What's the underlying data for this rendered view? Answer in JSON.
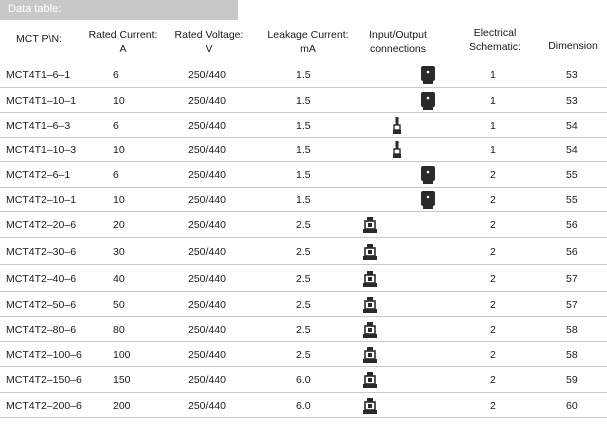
{
  "title": "Data table:",
  "headers": {
    "pn": "MCT P\\N:",
    "current_1": "Rated Current:",
    "current_2": "A",
    "voltage_1": "Rated Voltage:",
    "voltage_2": "V",
    "leakage_1": "Leakage  Current:",
    "leakage_2": "mA",
    "io_1": "Input/Output",
    "io_2": "connections",
    "schematic_1": "Electrical",
    "schematic_2": "Schematic:",
    "dimension": "Dimension"
  },
  "rows": [
    {
      "pn": "MCT4T1–6–1",
      "current": "6",
      "voltage": "250/440",
      "leakage": "1.5",
      "connector": "block-icon",
      "schematic": "1",
      "dimension": "53"
    },
    {
      "pn": "MCT4T1–10–1",
      "current": "10",
      "voltage": "250/440",
      "leakage": "1.5",
      "connector": "block-icon",
      "schematic": "1",
      "dimension": "53"
    },
    {
      "pn": "MCT4T1–6–3",
      "current": "6",
      "voltage": "250/440",
      "leakage": "1.5",
      "connector": "pin-icon",
      "schematic": "1",
      "dimension": "54"
    },
    {
      "pn": "MCT4T1–10–3",
      "current": "10",
      "voltage": "250/440",
      "leakage": "1.5",
      "connector": "pin-icon",
      "schematic": "1",
      "dimension": "54"
    },
    {
      "pn": "MCT4T2–6–1",
      "current": "6",
      "voltage": "250/440",
      "leakage": "1.5",
      "connector": "block-icon",
      "schematic": "2",
      "dimension": "55"
    },
    {
      "pn": "MCT4T2–10–1",
      "current": "10",
      "voltage": "250/440",
      "leakage": "1.5",
      "connector": "block-icon",
      "schematic": "2",
      "dimension": "55"
    },
    {
      "pn": "MCT4T2–20–6",
      "current": "20",
      "voltage": "250/440",
      "leakage": "2.5",
      "connector": "terminal-icon",
      "schematic": "2",
      "dimension": "56"
    },
    {
      "pn": "MCT4T2–30–6",
      "current": "30",
      "voltage": "250/440",
      "leakage": "2.5",
      "connector": "terminal-icon",
      "schematic": "2",
      "dimension": "56"
    },
    {
      "pn": "MCT4T2–40–6",
      "current": "40",
      "voltage": "250/440",
      "leakage": "2.5",
      "connector": "terminal-icon",
      "schematic": "2",
      "dimension": "57"
    },
    {
      "pn": "MCT4T2–50–6",
      "current": "50",
      "voltage": "250/440",
      "leakage": "2.5",
      "connector": "terminal-icon",
      "schematic": "2",
      "dimension": "57"
    },
    {
      "pn": "MCT4T2–80–6",
      "current": "80",
      "voltage": "250/440",
      "leakage": "2.5",
      "connector": "terminal-icon",
      "schematic": "2",
      "dimension": "58"
    },
    {
      "pn": "MCT4T2–100–6",
      "current": "100",
      "voltage": "250/440",
      "leakage": "2.5",
      "connector": "terminal-icon",
      "schematic": "2",
      "dimension": "58"
    },
    {
      "pn": "MCT4T2–150–6",
      "current": "150",
      "voltage": "250/440",
      "leakage": "6.0",
      "connector": "terminal-icon",
      "schematic": "2",
      "dimension": "59"
    },
    {
      "pn": "MCT4T2–200–6",
      "current": "200",
      "voltage": "250/440",
      "leakage": "6.0",
      "connector": "terminal-icon",
      "schematic": "2",
      "dimension": "60"
    }
  ],
  "colors": {
    "title_bar": "#c8c8c8",
    "rule": "#c9c9c9",
    "text": "#1a1a1a",
    "icon": "#2a2a2a"
  }
}
